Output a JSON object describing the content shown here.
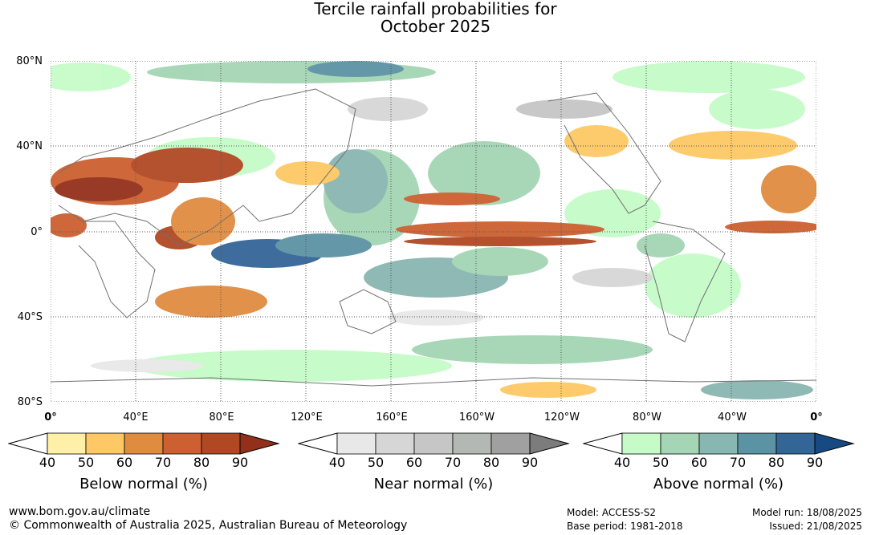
{
  "title_line1": "Tercile rainfall probabilities for",
  "title_line2": "October 2025",
  "lat_labels": [
    "80°N",
    "40°N",
    "0°",
    "40°S",
    "80°S"
  ],
  "lon_labels": [
    "0°",
    "40°E",
    "80°E",
    "120°E",
    "160°E",
    "160°W",
    "120°W",
    "80°W",
    "40°W",
    "0°"
  ],
  "colorbars": [
    {
      "title": "Below normal (%)",
      "ticks": [
        "40",
        "50",
        "60",
        "70",
        "80",
        "90"
      ],
      "colors": [
        "#ffffff",
        "#fff0a8",
        "#fdc865",
        "#e08c40",
        "#cc6030",
        "#b04824",
        "#93301b"
      ]
    },
    {
      "title": "Near normal (%)",
      "ticks": [
        "40",
        "50",
        "60",
        "70",
        "80",
        "90"
      ],
      "colors": [
        "#ffffff",
        "#e8e8e8",
        "#d6d6d6",
        "#c6c6c6",
        "#b3b8b5",
        "#a0a0a0",
        "#7c7c7c"
      ]
    },
    {
      "title": "Above normal (%)",
      "ticks": [
        "40",
        "50",
        "60",
        "70",
        "80",
        "90"
      ],
      "colors": [
        "#ffffff",
        "#c6fbc8",
        "#a4d5b4",
        "#88b6b0",
        "#5c93a4",
        "#346597",
        "#174a82"
      ]
    }
  ],
  "footer": {
    "url": "www.bom.gov.au/climate",
    "copyright": "© Commonwealth of Australia 2025, Australian Bureau of Meteorology",
    "model": "Model: ACCESS-S2",
    "base_period": "Base period: 1981-2018",
    "model_run": "Model run: 18/08/2025",
    "issued": "Issued: 21/08/2025"
  }
}
